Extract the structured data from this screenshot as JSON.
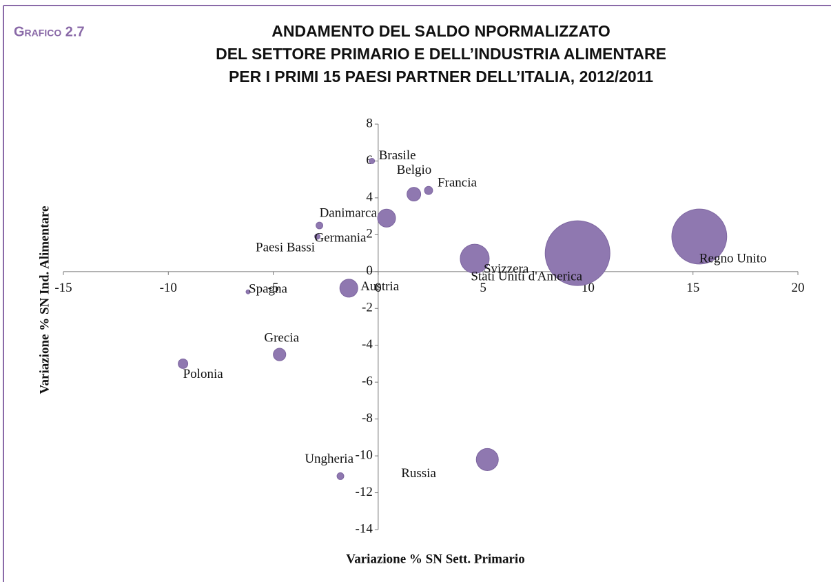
{
  "chart_data": {
    "type": "bubble",
    "figure_label": "Grafico 2.7",
    "title": [
      "ANDAMENTO DEL  SALDO NPORMALIZZATO",
      "DEL SETTORE PRIMARIO E DELL’INDUSTRIA ALIMENTARE",
      "PER I PRIMI 15 PAESI PARTNER DELL’ITALIA, 2012/2011"
    ],
    "xlabel": "Variazione % SN Sett. Primario",
    "ylabel": "Variazione % SN Ind. Alimentare",
    "color": "#8f78b0",
    "labels": [
      "Brasile",
      "Belgio",
      "Francia",
      "Danimarca",
      "Germania",
      "Paesi Bassi",
      "Svizzera",
      "Stati Uniti d'America",
      "Regno Unito",
      "Austria",
      "Spagna",
      "Grecia",
      "Polonia",
      "Ungheria",
      "Russia"
    ],
    "x": [
      -0.3,
      1.7,
      2.4,
      -2.8,
      -2.9,
      0.4,
      4.6,
      9.5,
      15.3,
      -1.4,
      -6.2,
      -4.7,
      -9.3,
      -1.8,
      5.2
    ],
    "y": [
      6.0,
      4.2,
      4.4,
      2.5,
      1.9,
      2.9,
      0.7,
      1.0,
      1.9,
      -0.9,
      -1.1,
      -4.5,
      -5.0,
      -11.1,
      -10.2
    ],
    "sizes": [
      0.7,
      4.5,
      1.6,
      1.1,
      0.7,
      7.7,
      20,
      100,
      72,
      7.7,
      0.4,
      3.7,
      2.2,
      1.1,
      11.6
    ],
    "xlim": [
      -15,
      20
    ],
    "xticks": [
      -15,
      -10,
      -5,
      0,
      5,
      10,
      15,
      20
    ],
    "ylim": [
      -14,
      8
    ],
    "yticks": [
      -14,
      -12,
      -10,
      -8,
      -6,
      -4,
      -2,
      0,
      2,
      4,
      6,
      8
    ]
  }
}
